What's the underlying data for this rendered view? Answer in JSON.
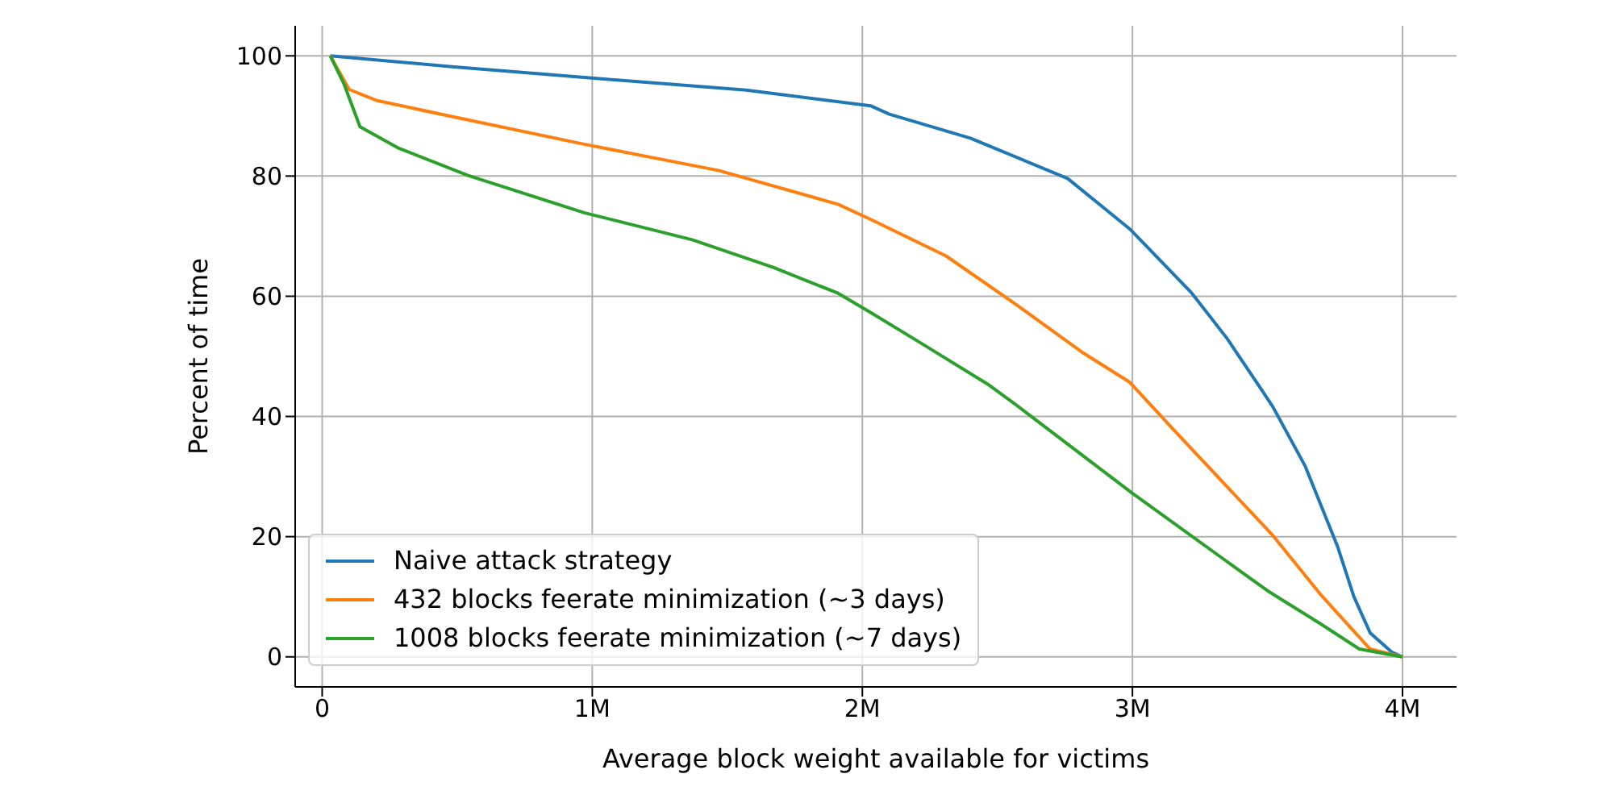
{
  "chart_data": {
    "type": "line",
    "xlabel": "Average block weight available for victims",
    "ylabel": "Percent of time",
    "xlim": [
      -100000,
      4200000
    ],
    "ylim": [
      -5,
      105
    ],
    "xticks": [
      0,
      {
        "value": 1000000,
        "label": "1M"
      },
      {
        "value": 2000000,
        "label": "2M"
      },
      {
        "value": 3000000,
        "label": "3M"
      },
      {
        "value": 4000000,
        "label": "4M"
      }
    ],
    "yticks": [
      0,
      20,
      40,
      60,
      80,
      100
    ],
    "grid": true,
    "legend": "bottom left",
    "marker": "none",
    "line_style": "solid",
    "series": [
      {
        "name": "Naive attack strategy",
        "color": "#1f77b4",
        "x": [
          30000,
          480000,
          970000,
          1570000,
          2030000,
          2100000,
          2400000,
          2760000,
          2990000,
          3220000,
          3350000,
          3470000,
          3520000,
          3640000,
          3760000,
          3820000,
          3880000,
          3960000,
          4000000
        ],
        "values": [
          100,
          98.2,
          96.4,
          94.3,
          91.7,
          90.3,
          86.3,
          79.6,
          71.2,
          60.5,
          53,
          45,
          41.6,
          31.7,
          18.3,
          10,
          4,
          0.8,
          0
        ]
      },
      {
        "name": "432 blocks feerate minimization (~3 days)",
        "color": "#ff7f0e",
        "x": [
          30000,
          100000,
          200000,
          480000,
          970000,
          1470000,
          1910000,
          2030000,
          2310000,
          2570000,
          2820000,
          2990000,
          3150000,
          3520000,
          3700000,
          3880000,
          4000000
        ],
        "values": [
          100,
          94.4,
          92.6,
          89.9,
          85.3,
          80.9,
          75.3,
          72.8,
          66.7,
          58.6,
          50.5,
          45.7,
          37.9,
          20.2,
          10.2,
          1.3,
          0
        ]
      },
      {
        "name": "1008 blocks feerate minimization (~7 days)",
        "color": "#2ca02c",
        "x": [
          30000,
          80000,
          140000,
          280000,
          540000,
          970000,
          1370000,
          1670000,
          1910000,
          2030000,
          2210000,
          2470000,
          2570000,
          3000000,
          3500000,
          3700000,
          3840000,
          4000000
        ],
        "values": [
          100,
          95.4,
          88.2,
          84.7,
          80.1,
          73.9,
          69.4,
          64.8,
          60.5,
          57.3,
          52.4,
          45.2,
          41.9,
          27.2,
          11,
          5.4,
          1.3,
          0
        ]
      }
    ]
  }
}
